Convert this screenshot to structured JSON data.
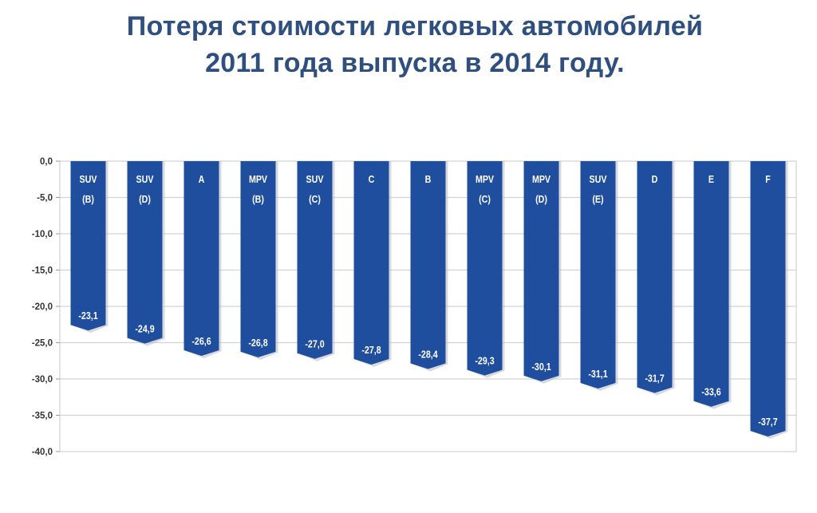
{
  "title_line1": "Потеря стоимости легковых автомобилей",
  "title_line2": "2011 года выпуска в 2014 году.",
  "colors": {
    "bar": "#1f4e9e",
    "bar_shadow": "#b8bcc4",
    "title": "#2f4f7f",
    "grid": "#d2d2d2",
    "tick_text": "#333333"
  },
  "chart_data": {
    "type": "bar",
    "title": "Потеря стоимости легковых автомобилей 2011 года выпуска в 2014 году.",
    "xlabel": "",
    "ylabel": "",
    "ylim": [
      -40,
      0
    ],
    "y_ticks": [
      "0,0",
      "-5,0",
      "-10,0",
      "-15,0",
      "-20,0",
      "-25,0",
      "-30,0",
      "-35,0",
      "-40,0"
    ],
    "grid": true,
    "categories": [
      [
        "SUV",
        "(B)"
      ],
      [
        "SUV",
        "(D)"
      ],
      [
        "A"
      ],
      [
        "MPV",
        "(B)"
      ],
      [
        "SUV",
        "(C)"
      ],
      [
        "C"
      ],
      [
        "B"
      ],
      [
        "MPV",
        "(C)"
      ],
      [
        "MPV",
        "(D)"
      ],
      [
        "SUV",
        "(E)"
      ],
      [
        "D"
      ],
      [
        "E"
      ],
      [
        "F"
      ]
    ],
    "values": [
      -23.1,
      -24.9,
      -26.6,
      -26.8,
      -27.0,
      -27.8,
      -28.4,
      -29.3,
      -30.1,
      -31.1,
      -31.7,
      -33.6,
      -37.7
    ],
    "value_labels": [
      "-23,1",
      "-24,9",
      "-26,6",
      "-26,8",
      "-27,0",
      "-27,8",
      "-28,4",
      "-29,3",
      "-30,1",
      "-31,1",
      "-31,7",
      "-33,6",
      "-37,7"
    ]
  }
}
